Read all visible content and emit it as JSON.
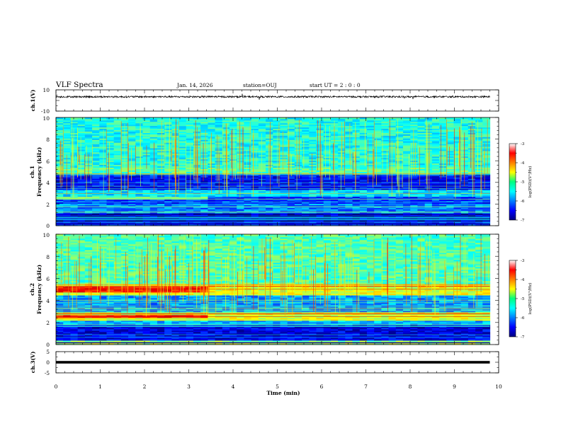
{
  "header": {
    "title": "VLF Spectra",
    "date": "Jan. 14, 2026",
    "station": "station=OUJ",
    "start_ut": "start UT =  2 : 0 : 0"
  },
  "chart_data": [
    {
      "id": "ch1-waveform",
      "type": "line",
      "ylabel": "ch.1(V)",
      "ylim": [
        -10,
        10
      ],
      "y_ticks": [
        "10",
        "-10"
      ],
      "xlim": [
        0,
        10
      ],
      "data_extent_min": [
        0,
        9.8
      ],
      "mean_level": 3.5,
      "trace_color": "#000000"
    },
    {
      "id": "ch1-spectrogram",
      "type": "heatmap",
      "ylabel_line1": "ch.1",
      "ylabel_line2": "Frequency  (kHz)",
      "ylim": [
        0,
        10
      ],
      "y_ticks": [
        "0",
        "2",
        "4",
        "6",
        "8",
        "10"
      ],
      "xlim": [
        0,
        10
      ],
      "data_extent_min": [
        0,
        9.8
      ],
      "bands_khz": [
        {
          "from": 0,
          "to": 0.4,
          "level": -6.4
        },
        {
          "from": 0.4,
          "to": 1.2,
          "level": -6.8
        },
        {
          "from": 1.2,
          "to": 2.0,
          "level": -6.0
        },
        {
          "from": 2.0,
          "to": 2.7,
          "level": -6.3
        },
        {
          "from": 2.7,
          "to": 3.3,
          "level": -5.6
        },
        {
          "from": 3.3,
          "to": 4.8,
          "level": -6.5
        },
        {
          "from": 4.8,
          "to": 5.4,
          "level": -5.2
        },
        {
          "from": 5.4,
          "to": 10,
          "level": -5.4
        }
      ],
      "transition_min": 3.4,
      "colorbar": {
        "label": "log(PSD)(V²/Hz)",
        "range": [
          -7,
          -3
        ],
        "ticks": [
          "-3",
          "-4",
          "-5",
          "-6",
          "-7"
        ]
      }
    },
    {
      "id": "ch2-spectrogram",
      "type": "heatmap",
      "ylabel_line1": "ch.2",
      "ylabel_line2": "Frequency  (kHz)",
      "ylim": [
        0,
        10
      ],
      "y_ticks": [
        "0",
        "2",
        "4",
        "6",
        "8",
        "10"
      ],
      "xlim": [
        0,
        10
      ],
      "data_extent_min": [
        0,
        9.8
      ],
      "bands_khz": [
        {
          "from": 0,
          "to": 0.4,
          "level": -5.0
        },
        {
          "from": 0.4,
          "to": 1.8,
          "level": -6.6
        },
        {
          "from": 1.8,
          "to": 2.2,
          "level": -5.8
        },
        {
          "from": 2.2,
          "to": 2.9,
          "level": -4.6
        },
        {
          "from": 2.9,
          "to": 4.5,
          "level": -5.9
        },
        {
          "from": 4.5,
          "to": 5.5,
          "level": -4.6
        },
        {
          "from": 5.5,
          "to": 10,
          "level": -5.2
        }
      ],
      "early_enhanced_bands_khz": [
        [
          2.4,
          2.7
        ],
        [
          4.8,
          5.2
        ]
      ],
      "transition_min": 3.4,
      "colorbar": {
        "label": "log(PSD)(V²/Hz)",
        "range": [
          -7,
          -3
        ],
        "ticks": [
          "-3",
          "-4",
          "-5",
          "-6",
          "-7"
        ]
      }
    },
    {
      "id": "ch3-waveform",
      "type": "line",
      "ylabel": "ch.3(V)",
      "ylim": [
        -5,
        5
      ],
      "y_ticks": [
        "5",
        "0",
        "-5"
      ],
      "xlim": [
        0,
        10
      ],
      "data_extent_min": [
        0,
        9.8
      ],
      "mean_level": 0,
      "trace_color": "#000000"
    }
  ],
  "x_axis": {
    "label": "Time  (min)",
    "ticks": [
      "0",
      "1",
      "2",
      "3",
      "4",
      "5",
      "6",
      "7",
      "8",
      "9",
      "10"
    ]
  }
}
